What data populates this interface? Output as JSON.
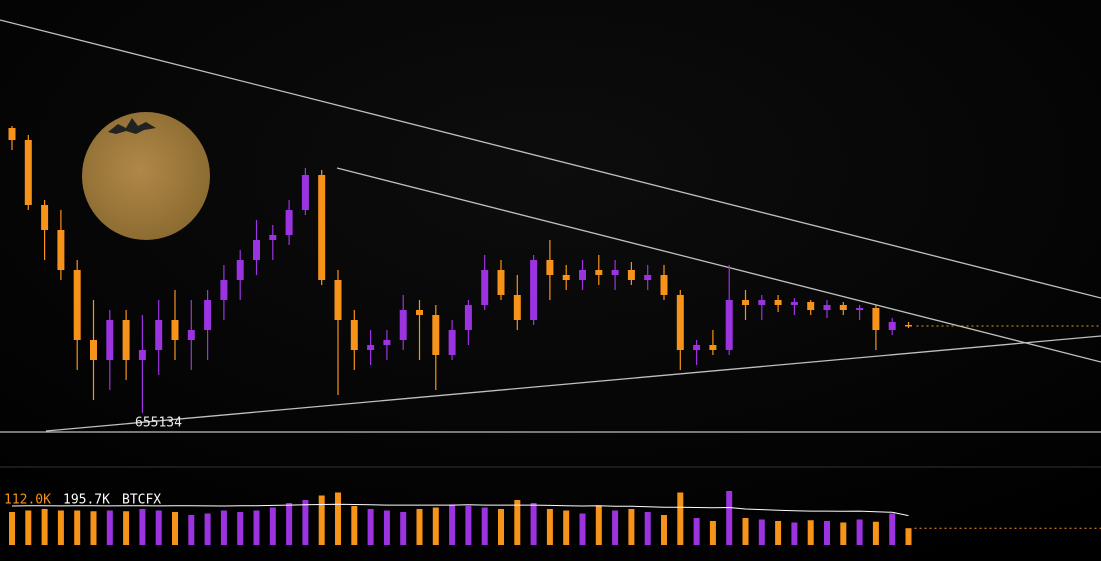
{
  "chart_data": {
    "type": "candlestick",
    "symbol": "BTCFX",
    "up_color": "#9b34e0",
    "down_color": "#f7931a",
    "ylim": [
      645000,
      903000
    ],
    "open": [
      826200,
      819000,
      780000,
      765000,
      741000,
      699000,
      687000,
      711000,
      687000,
      693000,
      711000,
      699000,
      705000,
      723000,
      735000,
      747000,
      759000,
      762000,
      777000,
      798000,
      735000,
      711000,
      693000,
      696000,
      699000,
      717000,
      714000,
      690000,
      705000,
      720000,
      741000,
      726000,
      711000,
      747000,
      738000,
      735000,
      741000,
      738000,
      741000,
      735000,
      738000,
      726000,
      693000,
      696000,
      693000,
      723000,
      720000,
      723000,
      720000,
      721800,
      717000,
      720000,
      717000,
      718200,
      705000,
      708000
    ],
    "high": [
      827400,
      822000,
      783000,
      777000,
      747000,
      723000,
      717000,
      717000,
      714000,
      723000,
      729000,
      723000,
      729000,
      744000,
      753000,
      771000,
      768000,
      783000,
      802200,
      801000,
      741000,
      717000,
      705000,
      705000,
      726000,
      723000,
      720000,
      711000,
      723000,
      750000,
      747000,
      738000,
      750000,
      759000,
      744000,
      747000,
      750000,
      747000,
      745800,
      744000,
      744000,
      729000,
      699000,
      705000,
      744000,
      729000,
      726000,
      726000,
      724200,
      723000,
      723000,
      721800,
      720000,
      720000,
      712200,
      709800
    ],
    "low": [
      813000,
      777000,
      747000,
      735000,
      681000,
      663000,
      669000,
      675000,
      655134,
      678000,
      687000,
      681000,
      687000,
      711000,
      723000,
      738000,
      747000,
      756000,
      774000,
      732000,
      666000,
      681000,
      684000,
      687000,
      693000,
      687000,
      669000,
      687000,
      696000,
      717000,
      723000,
      705000,
      708000,
      723000,
      729000,
      729000,
      732000,
      729000,
      732000,
      729000,
      723000,
      681000,
      684000,
      690000,
      690000,
      711000,
      711000,
      715800,
      714000,
      714000,
      712200,
      714000,
      711000,
      693000,
      702000,
      706200
    ],
    "close": [
      819000,
      780000,
      765000,
      741000,
      699000,
      687000,
      711000,
      687000,
      693000,
      711000,
      699000,
      705000,
      723000,
      735000,
      747000,
      759000,
      762000,
      777000,
      798000,
      735000,
      711000,
      693000,
      696000,
      699000,
      717000,
      714000,
      690000,
      705000,
      720000,
      741000,
      726000,
      711000,
      747000,
      738000,
      735000,
      741000,
      738000,
      741000,
      735000,
      738000,
      726000,
      693000,
      696000,
      693000,
      723000,
      720000,
      723000,
      720000,
      721800,
      717000,
      720000,
      717000,
      718200,
      705000,
      709800,
      707400
    ],
    "volume": {
      "ylim": [
        0,
        400000
      ],
      "values": [
        220000,
        230000,
        240000,
        230000,
        230000,
        225000,
        230000,
        225000,
        240000,
        230000,
        220000,
        200000,
        210000,
        230000,
        220000,
        230000,
        250000,
        280000,
        300000,
        330000,
        350000,
        260000,
        240000,
        230000,
        220000,
        240000,
        250000,
        270000,
        260000,
        250000,
        240000,
        300000,
        280000,
        240000,
        230000,
        210000,
        260000,
        230000,
        240000,
        220000,
        200000,
        350000,
        180000,
        160000,
        360000,
        180000,
        170000,
        160000,
        150000,
        165000,
        160000,
        150000,
        170000,
        155000,
        210000,
        112000
      ],
      "value_labels": [
        null,
        null,
        null,
        null,
        null,
        null,
        null,
        null,
        null,
        null,
        null,
        null,
        null,
        null,
        null,
        null,
        null,
        null,
        null,
        null,
        null,
        null,
        null,
        null,
        null,
        null,
        null,
        null,
        null,
        null,
        null,
        null,
        null,
        null,
        null,
        null,
        null,
        null,
        null,
        null,
        null,
        null,
        null,
        null,
        null,
        null,
        null,
        null,
        null,
        null,
        null,
        null,
        null,
        null,
        null,
        "112.0K"
      ]
    },
    "volume_ma": {
      "color": "#ffffff",
      "values": [
        260000,
        262000,
        262000,
        261000,
        262000,
        262000,
        261000,
        262000,
        262000,
        261000,
        262000,
        262000,
        261000,
        260000,
        262000,
        262000,
        264000,
        266000,
        268000,
        270000,
        272000,
        270000,
        268000,
        266000,
        266000,
        266000,
        266000,
        266000,
        268000,
        266000,
        266000,
        266000,
        266000,
        264000,
        262000,
        260000,
        262000,
        258000,
        258000,
        255000,
        252000,
        252000,
        250000,
        248000,
        250000,
        240000,
        236000,
        232000,
        228000,
        226000,
        226000,
        225000,
        226000,
        222000,
        218000,
        195700
      ],
      "value_labels": [
        null,
        null,
        null,
        null,
        null,
        null,
        null,
        null,
        null,
        null,
        null,
        null,
        null,
        null,
        null,
        null,
        null,
        null,
        null,
        null,
        null,
        null,
        null,
        null,
        null,
        null,
        null,
        null,
        null,
        null,
        null,
        null,
        null,
        null,
        null,
        null,
        null,
        null,
        null,
        null,
        null,
        null,
        null,
        null,
        null,
        null,
        null,
        null,
        null,
        null,
        null,
        null,
        null,
        null,
        null,
        "195.7K"
      ]
    }
  }
}
